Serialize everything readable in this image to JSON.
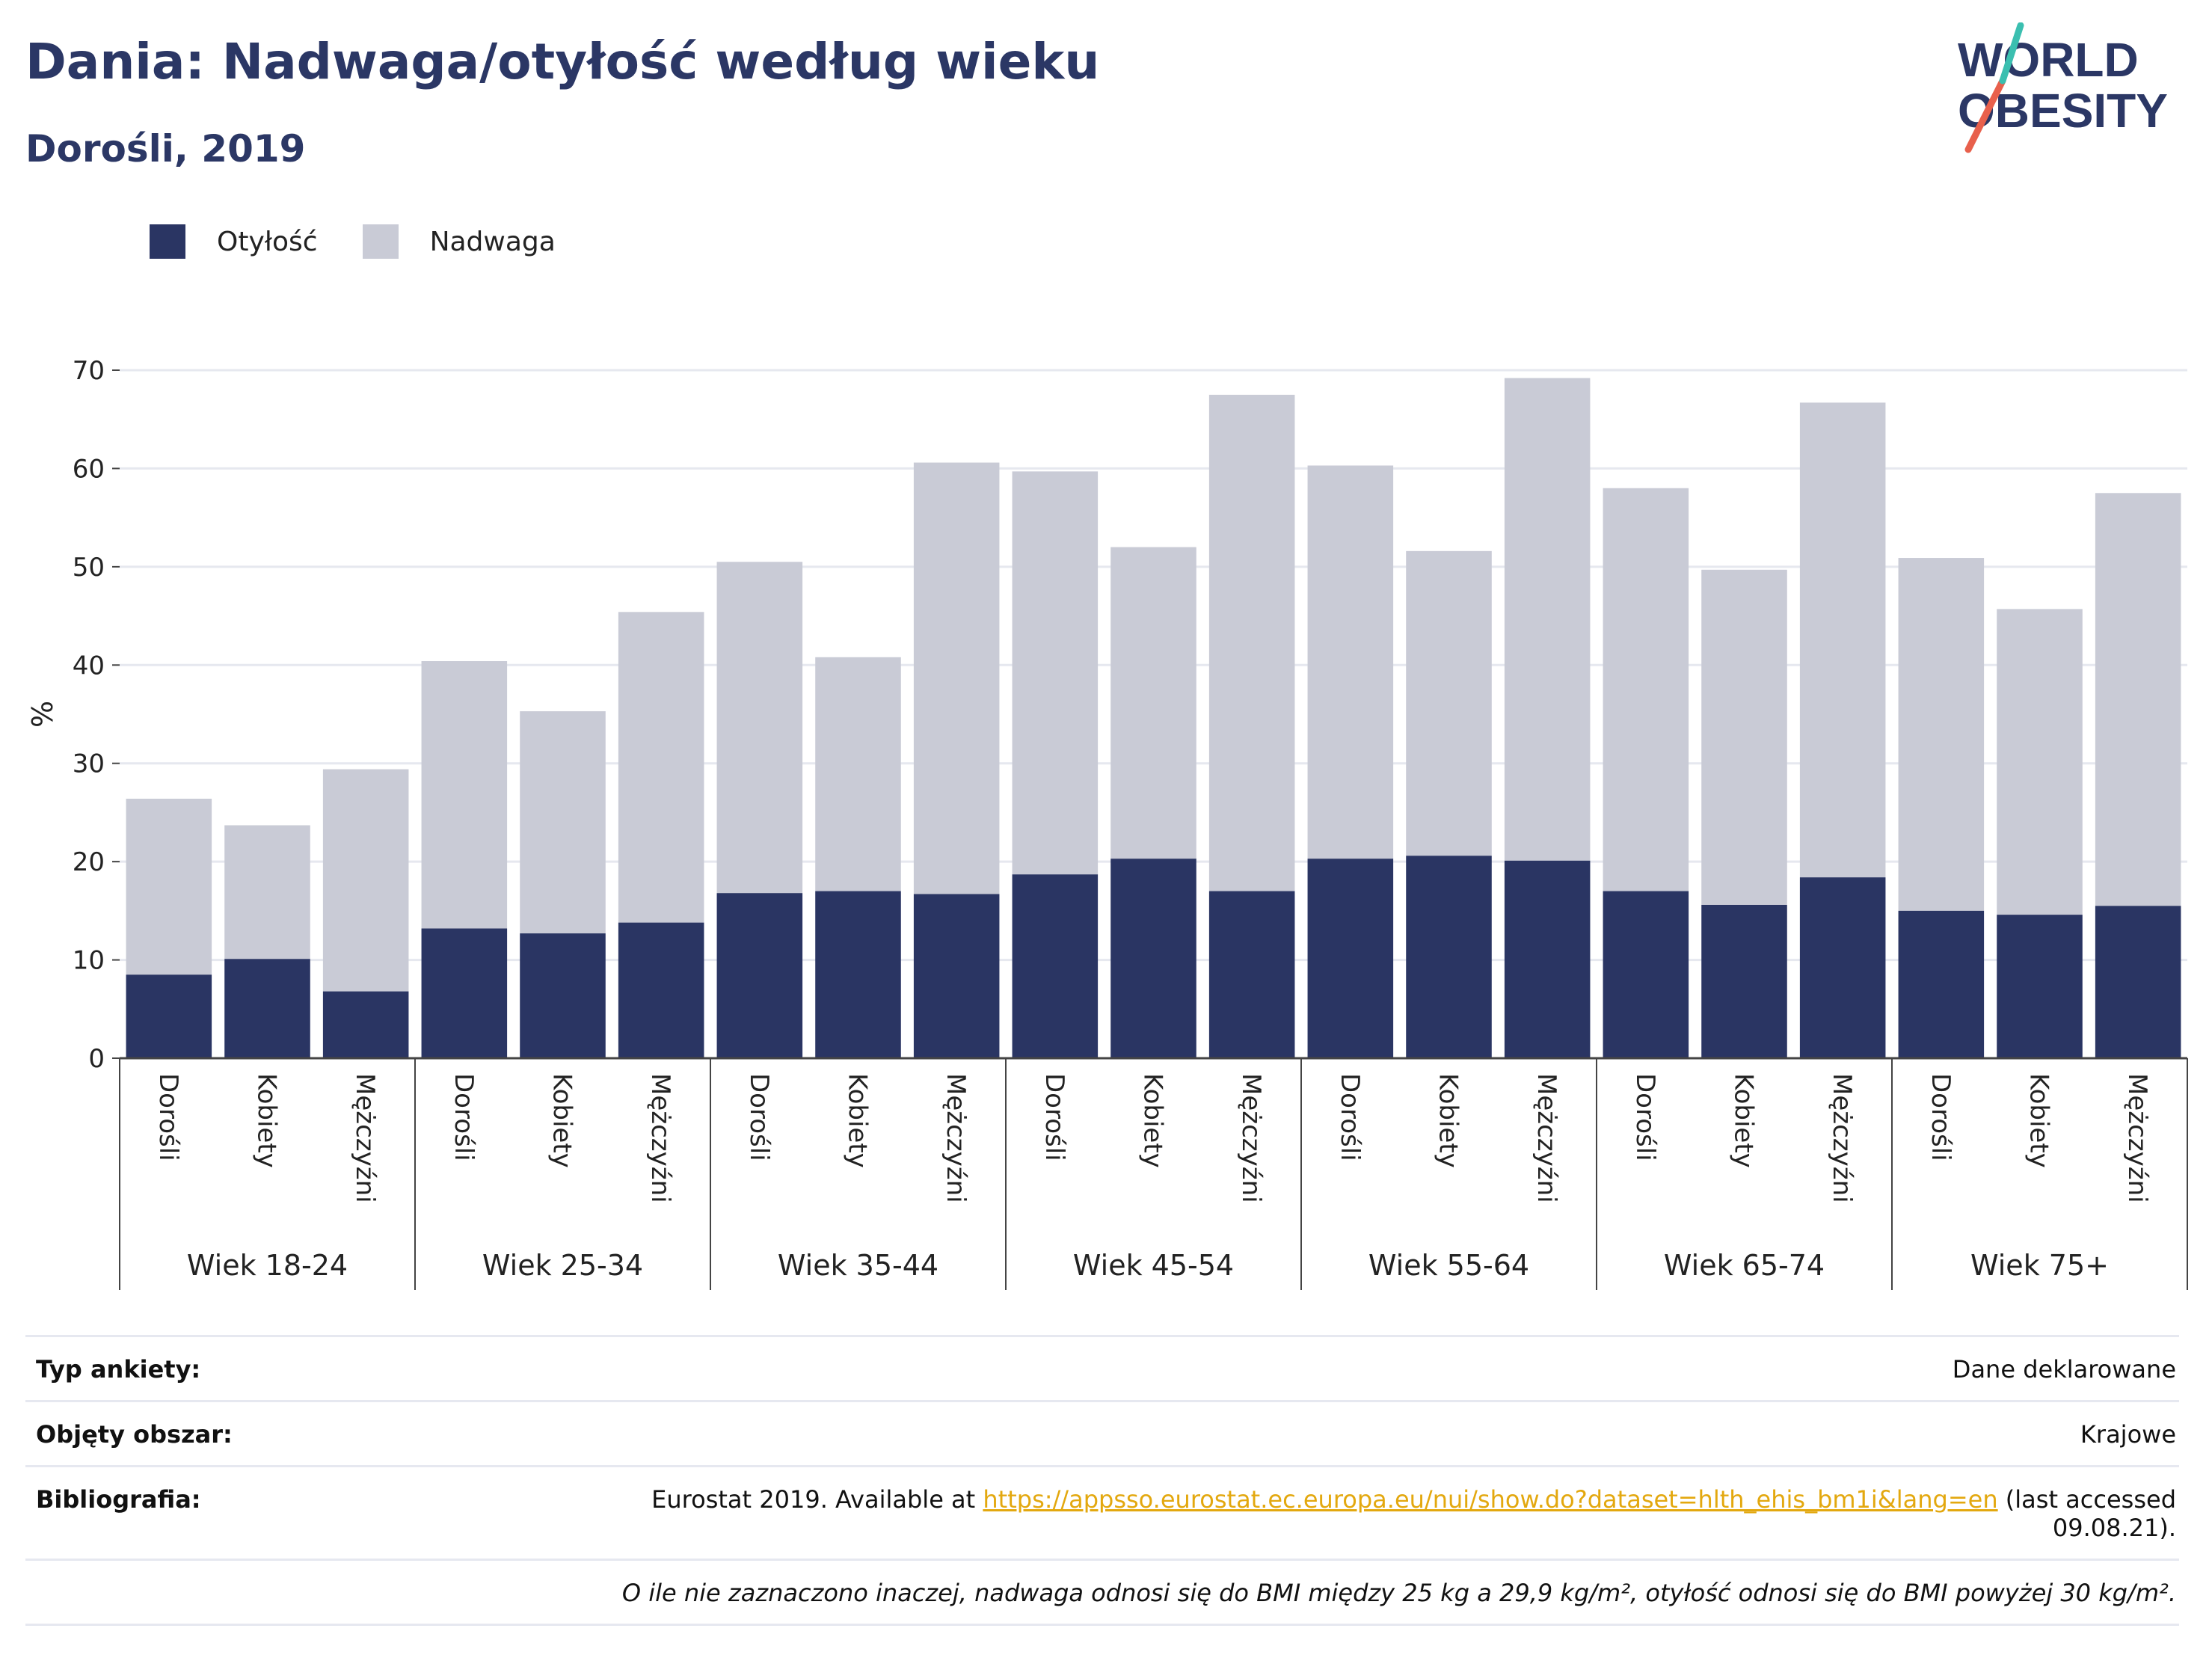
{
  "header": {
    "title": "Dania: Nadwaga/otyłość według wieku",
    "subtitle": "Dorośli, 2019"
  },
  "logo": {
    "line1": "WORLD",
    "line2": "OBESITY"
  },
  "legend": {
    "obesity": "Otyłość",
    "overweight": "Nadwaga"
  },
  "colors": {
    "obesity": "#2a3563",
    "overweight": "#c9cbd6",
    "accent_red": "#e8604c",
    "accent_teal": "#3bbfb0",
    "link": "#e3a80f"
  },
  "chart_data": {
    "type": "bar",
    "stacked": true,
    "ylabel": "%",
    "ylim": [
      0,
      70
    ],
    "yticks": [
      0,
      10,
      20,
      30,
      40,
      50,
      60,
      70
    ],
    "grid": true,
    "legend_position": "top-left",
    "groups": [
      "Wiek 18-24",
      "Wiek 25-34",
      "Wiek 35-44",
      "Wiek 45-54",
      "Wiek 55-64",
      "Wiek 65-74",
      "Wiek 75+"
    ],
    "subcategories": [
      "Dorośli",
      "Kobiety",
      "Mężczyźni"
    ],
    "series": [
      {
        "name": "Otyłość",
        "values": [
          8.5,
          10.1,
          6.8,
          13.2,
          12.7,
          13.8,
          16.8,
          17.0,
          16.7,
          18.7,
          20.3,
          17.0,
          20.3,
          20.6,
          20.1,
          17.0,
          15.6,
          18.4,
          15.0,
          14.6,
          15.5
        ]
      },
      {
        "name": "Nadwaga",
        "values": [
          17.9,
          13.6,
          22.6,
          27.2,
          22.6,
          31.6,
          33.7,
          23.8,
          43.9,
          41.0,
          31.7,
          50.5,
          40.0,
          31.0,
          49.1,
          41.0,
          34.1,
          48.3,
          35.9,
          31.1,
          42.0
        ]
      }
    ]
  },
  "info": {
    "survey_label": "Typ ankiety:",
    "survey_value": "Dane deklarowane",
    "area_label": "Objęty obszar:",
    "area_value": "Krajowe",
    "biblio_label": "Bibliografia:",
    "biblio_prefix": "Eurostat 2019. Available at ",
    "biblio_link": "https://appsso.eurostat.ec.europa.eu/nui/show.do?dataset=hlth_ehis_bm1i&lang=en",
    "biblio_suffix": " (last accessed",
    "biblio_date": "09.08.21).",
    "note": "O ile nie zaznaczono inaczej, nadwaga odnosi się do BMI między 25 kg a 29,9 kg/m², otyłość odnosi się do BMI powyżej 30 kg/m²."
  }
}
